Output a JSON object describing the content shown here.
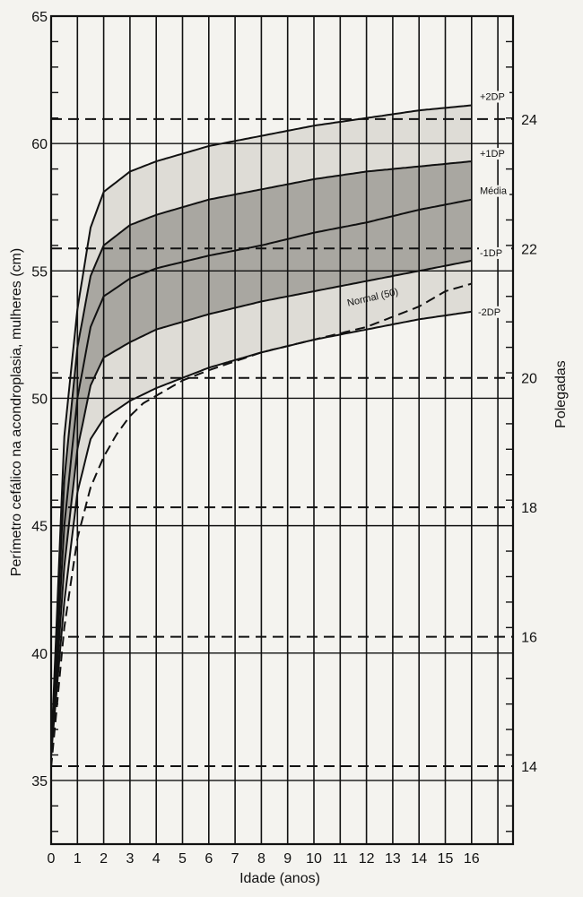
{
  "chart_data": {
    "type": "line",
    "xlabel": "Idade (anos)",
    "ylabel": "Perímetro cefálico na acondroplasia, mulheres (cm)",
    "y2label": "Polegadas",
    "xlim": [
      0,
      17
    ],
    "ylim": [
      32.5,
      65
    ],
    "x_ticks": [
      "0",
      "1",
      "2",
      "3",
      "4",
      "5",
      "6",
      "7",
      "8",
      "9",
      "10",
      "11",
      "12",
      "13",
      "14",
      "15",
      "16"
    ],
    "y_ticks": [
      "35",
      "40",
      "45",
      "50",
      "55",
      "60",
      "65"
    ],
    "y2_ticks": [
      "14",
      "16",
      "18",
      "20",
      "22",
      "24"
    ],
    "colors": {
      "band_outer": "#dedcd6",
      "band_inner": "#a9a7a1",
      "line": "#111111",
      "grid": "#111111"
    },
    "series": [
      {
        "name": "+2DP",
        "label": "+2DP",
        "x": [
          0,
          0.5,
          1,
          1.5,
          2,
          3,
          4,
          6,
          8,
          10,
          12,
          14,
          16
        ],
        "y": [
          36,
          48.5,
          53.5,
          56.7,
          58.1,
          58.9,
          59.3,
          59.9,
          60.3,
          60.7,
          61.0,
          61.3,
          61.5
        ]
      },
      {
        "name": "+1DP",
        "label": "+1DP",
        "x": [
          0,
          0.5,
          1,
          1.5,
          2,
          3,
          4,
          6,
          8,
          10,
          12,
          14,
          16
        ],
        "y": [
          36,
          46.8,
          52.0,
          54.8,
          56.0,
          56.8,
          57.2,
          57.8,
          58.2,
          58.6,
          58.9,
          59.1,
          59.3
        ]
      },
      {
        "name": "Média",
        "label": "Média",
        "x": [
          0,
          0.5,
          1,
          1.5,
          2,
          3,
          4,
          6,
          8,
          10,
          12,
          14,
          16
        ],
        "y": [
          36,
          45.0,
          50.0,
          52.8,
          54.0,
          54.7,
          55.1,
          55.6,
          56.0,
          56.5,
          56.9,
          57.4,
          57.8
        ]
      },
      {
        "name": "-1DP",
        "label": "-1DP",
        "x": [
          0,
          0.5,
          1,
          1.5,
          2,
          3,
          4,
          6,
          8,
          10,
          12,
          14,
          16
        ],
        "y": [
          36,
          43.4,
          48.0,
          50.5,
          51.6,
          52.2,
          52.7,
          53.3,
          53.8,
          54.2,
          54.6,
          55.0,
          55.4
        ]
      },
      {
        "name": "-2DP",
        "label": "-2DP",
        "x": [
          0,
          0.5,
          1,
          1.5,
          2,
          3,
          4,
          6,
          8,
          10,
          12,
          14,
          16
        ],
        "y": [
          36,
          42.0,
          46.3,
          48.4,
          49.2,
          49.9,
          50.4,
          51.2,
          51.8,
          52.3,
          52.7,
          53.1,
          53.4
        ]
      },
      {
        "name": "Normal (50)",
        "label": "Normal (50)",
        "dashed": true,
        "x": [
          0,
          0.5,
          1,
          1.5,
          2,
          2.5,
          3,
          3.5,
          4,
          5,
          6,
          8,
          10,
          12,
          14,
          15,
          16
        ],
        "y": [
          35.5,
          41.0,
          44.5,
          46.5,
          47.7,
          48.6,
          49.3,
          49.8,
          50.1,
          50.7,
          51.1,
          51.8,
          52.3,
          52.8,
          53.6,
          54.2,
          54.5
        ]
      }
    ],
    "dashed_reference_lines_inches": [
      14,
      16,
      18,
      20,
      22,
      24
    ]
  }
}
